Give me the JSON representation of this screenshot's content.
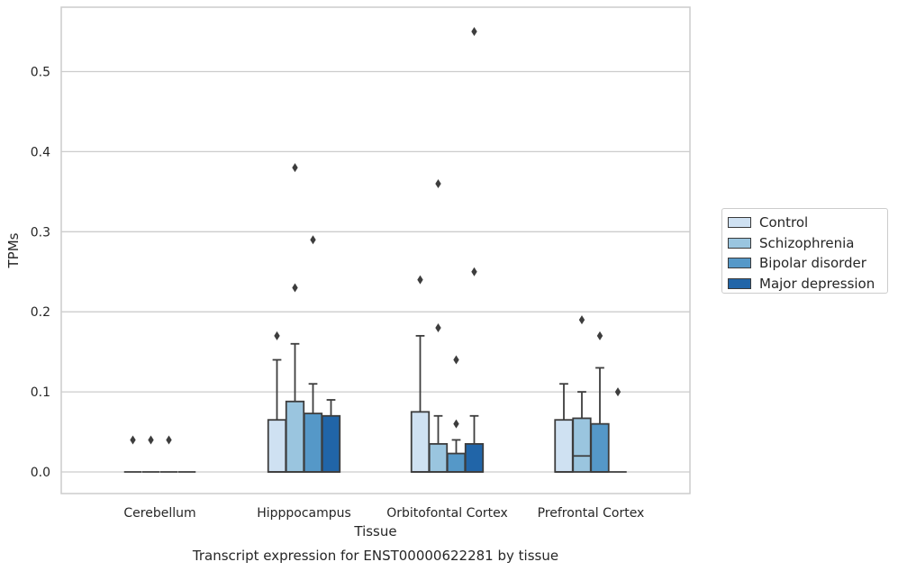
{
  "chart_data": {
    "type": "box",
    "title": "Transcript expression for ENST00000622281 by tissue",
    "xlabel": "Tissue",
    "ylabel": "TPMs",
    "ylim": [
      -0.027,
      0.58
    ],
    "yticks": [
      0.0,
      0.1,
      0.2,
      0.3,
      0.4,
      0.5
    ],
    "ytick_labels": [
      "0.0",
      "0.1",
      "0.2",
      "0.3",
      "0.4",
      "0.5"
    ],
    "categories": [
      "Cerebellum",
      "Hipppocampus",
      "Orbitofontal Cortex",
      "Prefrontal Cortex"
    ],
    "grid": true,
    "legend_position": "right",
    "series": [
      {
        "name": "Control",
        "color": "#cfe1f2",
        "boxes": [
          {
            "q1": 0,
            "median": 0,
            "q3": 0,
            "whisker_low": 0,
            "whisker_high": 0,
            "outliers": [
              0.04
            ]
          },
          {
            "q1": 0,
            "median": 0,
            "q3": 0.065,
            "whisker_low": 0,
            "whisker_high": 0.14,
            "outliers": [
              0.17
            ]
          },
          {
            "q1": 0,
            "median": 0,
            "q3": 0.075,
            "whisker_low": 0,
            "whisker_high": 0.17,
            "outliers": [
              0.24
            ]
          },
          {
            "q1": 0,
            "median": 0,
            "q3": 0.065,
            "whisker_low": 0,
            "whisker_high": 0.11,
            "outliers": []
          }
        ]
      },
      {
        "name": "Schizophrenia",
        "color": "#9ac5df",
        "boxes": [
          {
            "q1": 0,
            "median": 0,
            "q3": 0,
            "whisker_low": 0,
            "whisker_high": 0,
            "outliers": [
              0.04
            ]
          },
          {
            "q1": 0,
            "median": 0,
            "q3": 0.088,
            "whisker_low": 0,
            "whisker_high": 0.16,
            "outliers": [
              0.23,
              0.38
            ]
          },
          {
            "q1": 0,
            "median": 0,
            "q3": 0.035,
            "whisker_low": 0,
            "whisker_high": 0.07,
            "outliers": [
              0.18,
              0.36
            ]
          },
          {
            "q1": 0,
            "median": 0.02,
            "q3": 0.067,
            "whisker_low": 0,
            "whisker_high": 0.1,
            "outliers": [
              0.19
            ]
          }
        ]
      },
      {
        "name": "Bipolar disorder",
        "color": "#5598c8",
        "boxes": [
          {
            "q1": 0,
            "median": 0,
            "q3": 0,
            "whisker_low": 0,
            "whisker_high": 0,
            "outliers": [
              0.04
            ]
          },
          {
            "q1": 0,
            "median": 0,
            "q3": 0.073,
            "whisker_low": 0,
            "whisker_high": 0.11,
            "outliers": [
              0.29
            ]
          },
          {
            "q1": 0,
            "median": 0,
            "q3": 0.023,
            "whisker_low": 0,
            "whisker_high": 0.04,
            "outliers": [
              0.06,
              0.14
            ]
          },
          {
            "q1": 0,
            "median": 0,
            "q3": 0.06,
            "whisker_low": 0,
            "whisker_high": 0.13,
            "outliers": [
              0.17
            ]
          }
        ]
      },
      {
        "name": "Major depression",
        "color": "#2165a8",
        "boxes": [
          {
            "q1": 0,
            "median": 0,
            "q3": 0,
            "whisker_low": 0,
            "whisker_high": 0,
            "outliers": []
          },
          {
            "q1": 0,
            "median": 0,
            "q3": 0.07,
            "whisker_low": 0,
            "whisker_high": 0.09,
            "outliers": []
          },
          {
            "q1": 0,
            "median": 0,
            "q3": 0.035,
            "whisker_low": 0,
            "whisker_high": 0.07,
            "outliers": [
              0.25,
              0.55
            ]
          },
          {
            "q1": 0,
            "median": 0,
            "q3": 0,
            "whisker_low": 0,
            "whisker_high": 0,
            "outliers": [
              0.1
            ]
          }
        ]
      }
    ]
  }
}
